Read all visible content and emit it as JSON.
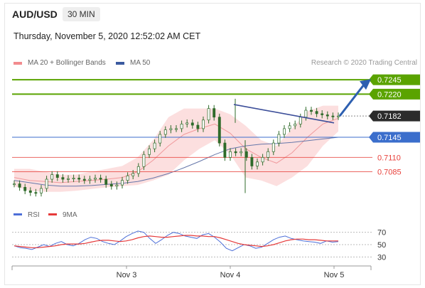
{
  "header": {
    "symbol": "AUD/USD",
    "timeframe": "30 MIN",
    "timestamp": "Thursday, November 5, 2020 12:52:02 AM CET"
  },
  "legend": {
    "ma20_bb": "MA 20 + Bollinger Bands",
    "ma50": "MA 50",
    "credit": "Research © 2020 Trading Central"
  },
  "colors": {
    "resistance": "#5aa300",
    "support": "#3b6ecc",
    "pivot_red": "#e8413b",
    "current": "#2b2b2b",
    "bollinger_fill": "#fbd9d9",
    "ma20": "#f0999c",
    "ma50": "#6677aa",
    "rsi": "#4d6fd8",
    "rsi_ma": "#e63a3a"
  },
  "chart_data": [
    {
      "type": "line",
      "title": "AUD/USD",
      "x_ticks": [
        "Nov 3",
        "Nov 4",
        "Nov 5"
      ],
      "ylim": [
        0.703,
        0.7265
      ],
      "levels": [
        {
          "label": "0.7245",
          "value": 0.7245,
          "kind": "resistance"
        },
        {
          "label": "0.7220",
          "value": 0.722,
          "kind": "resistance"
        },
        {
          "label": "0.7182",
          "value": 0.7182,
          "kind": "current"
        },
        {
          "label": "0.7145",
          "value": 0.7145,
          "kind": "pivot"
        },
        {
          "label": "0.7110",
          "value": 0.711,
          "kind": "support"
        },
        {
          "label": "0.7085",
          "value": 0.7085,
          "kind": "support"
        }
      ],
      "series": [
        {
          "name": "MA 20 + Bollinger Bands",
          "kind": "bollinger",
          "upper": [
            0.709,
            0.709,
            0.7085,
            0.708,
            0.708,
            0.7085,
            0.709,
            0.7095,
            0.711,
            0.714,
            0.718,
            0.7195,
            0.7195,
            0.7195,
            0.7185,
            0.7165,
            0.714,
            0.713,
            0.716,
            0.719,
            0.72,
            0.72
          ],
          "ma": [
            0.7075,
            0.707,
            0.7068,
            0.7066,
            0.7068,
            0.707,
            0.7072,
            0.7075,
            0.7085,
            0.7105,
            0.713,
            0.715,
            0.716,
            0.7168,
            0.7152,
            0.7125,
            0.711,
            0.71,
            0.7118,
            0.7145,
            0.7168,
            0.7178
          ],
          "lower": [
            0.706,
            0.7052,
            0.705,
            0.705,
            0.7052,
            0.7055,
            0.7058,
            0.706,
            0.7062,
            0.707,
            0.708,
            0.7105,
            0.7125,
            0.714,
            0.7115,
            0.7075,
            0.707,
            0.706,
            0.7075,
            0.7095,
            0.713,
            0.7155
          ]
        },
        {
          "name": "MA 50",
          "kind": "ma50",
          "values": [
            0.707,
            0.7066,
            0.7062,
            0.706,
            0.706,
            0.7061,
            0.7063,
            0.7065,
            0.7068,
            0.7074,
            0.7082,
            0.7092,
            0.7103,
            0.7115,
            0.7125,
            0.713,
            0.7133,
            0.7134,
            0.7136,
            0.7139,
            0.7142,
            0.7145
          ]
        },
        {
          "name": "price",
          "kind": "candles",
          "values": [
            0.7064,
            0.7058,
            0.7052,
            0.7049,
            0.7048,
            0.7056,
            0.7072,
            0.708,
            0.7075,
            0.7072,
            0.7073,
            0.7074,
            0.7072,
            0.707,
            0.7072,
            0.7074,
            0.7072,
            0.7063,
            0.706,
            0.7062,
            0.707,
            0.7078,
            0.7082,
            0.7094,
            0.7115,
            0.7125,
            0.7135,
            0.715,
            0.7158,
            0.716,
            0.716,
            0.7168,
            0.717,
            0.7166,
            0.716,
            0.7175,
            0.7195,
            0.718,
            0.7135,
            0.711,
            0.712,
            0.7118,
            0.712,
            0.711,
            0.7095,
            0.7102,
            0.711,
            0.712,
            0.7135,
            0.715,
            0.716,
            0.7165,
            0.7168,
            0.718,
            0.7192,
            0.719,
            0.7186,
            0.7184,
            0.7182,
            0.7181,
            0.7182
          ]
        }
      ],
      "annotations": [
        {
          "kind": "trendline",
          "from": [
            0.48,
            0.7202
          ],
          "to": [
            0.66,
            0.717
          ]
        },
        {
          "kind": "arrow",
          "from": [
            0.68,
            0.7182
          ],
          "to": [
            0.77,
            0.724
          ]
        }
      ]
    },
    {
      "type": "line",
      "title": "",
      "y_ticks": [
        70,
        50,
        30
      ],
      "ylim": [
        20,
        80
      ],
      "series": [
        {
          "name": "RSI",
          "values": [
            48,
            45,
            44,
            42,
            46,
            50,
            47,
            52,
            55,
            50,
            48,
            52,
            58,
            62,
            60,
            55,
            52,
            50,
            56,
            63,
            68,
            72,
            70,
            60,
            52,
            58,
            65,
            70,
            68,
            64,
            62,
            60,
            66,
            68,
            62,
            54,
            44,
            40,
            45,
            50,
            48,
            44,
            46,
            52,
            58,
            62,
            64,
            60,
            58,
            56,
            55,
            54,
            52,
            56,
            54,
            55
          ]
        },
        {
          "name": "9MA",
          "values": [
            48,
            47,
            46,
            45,
            45,
            46,
            47,
            48,
            50,
            51,
            51,
            51,
            52,
            54,
            56,
            57,
            57,
            56,
            55,
            56,
            58,
            61,
            63,
            64,
            63,
            62,
            62,
            63,
            64,
            65,
            65,
            64,
            64,
            63,
            63,
            61,
            58,
            55,
            52,
            50,
            49,
            48,
            47,
            48,
            50,
            53,
            56,
            58,
            59,
            59,
            58,
            58,
            57,
            56,
            56,
            56
          ]
        }
      ]
    }
  ]
}
